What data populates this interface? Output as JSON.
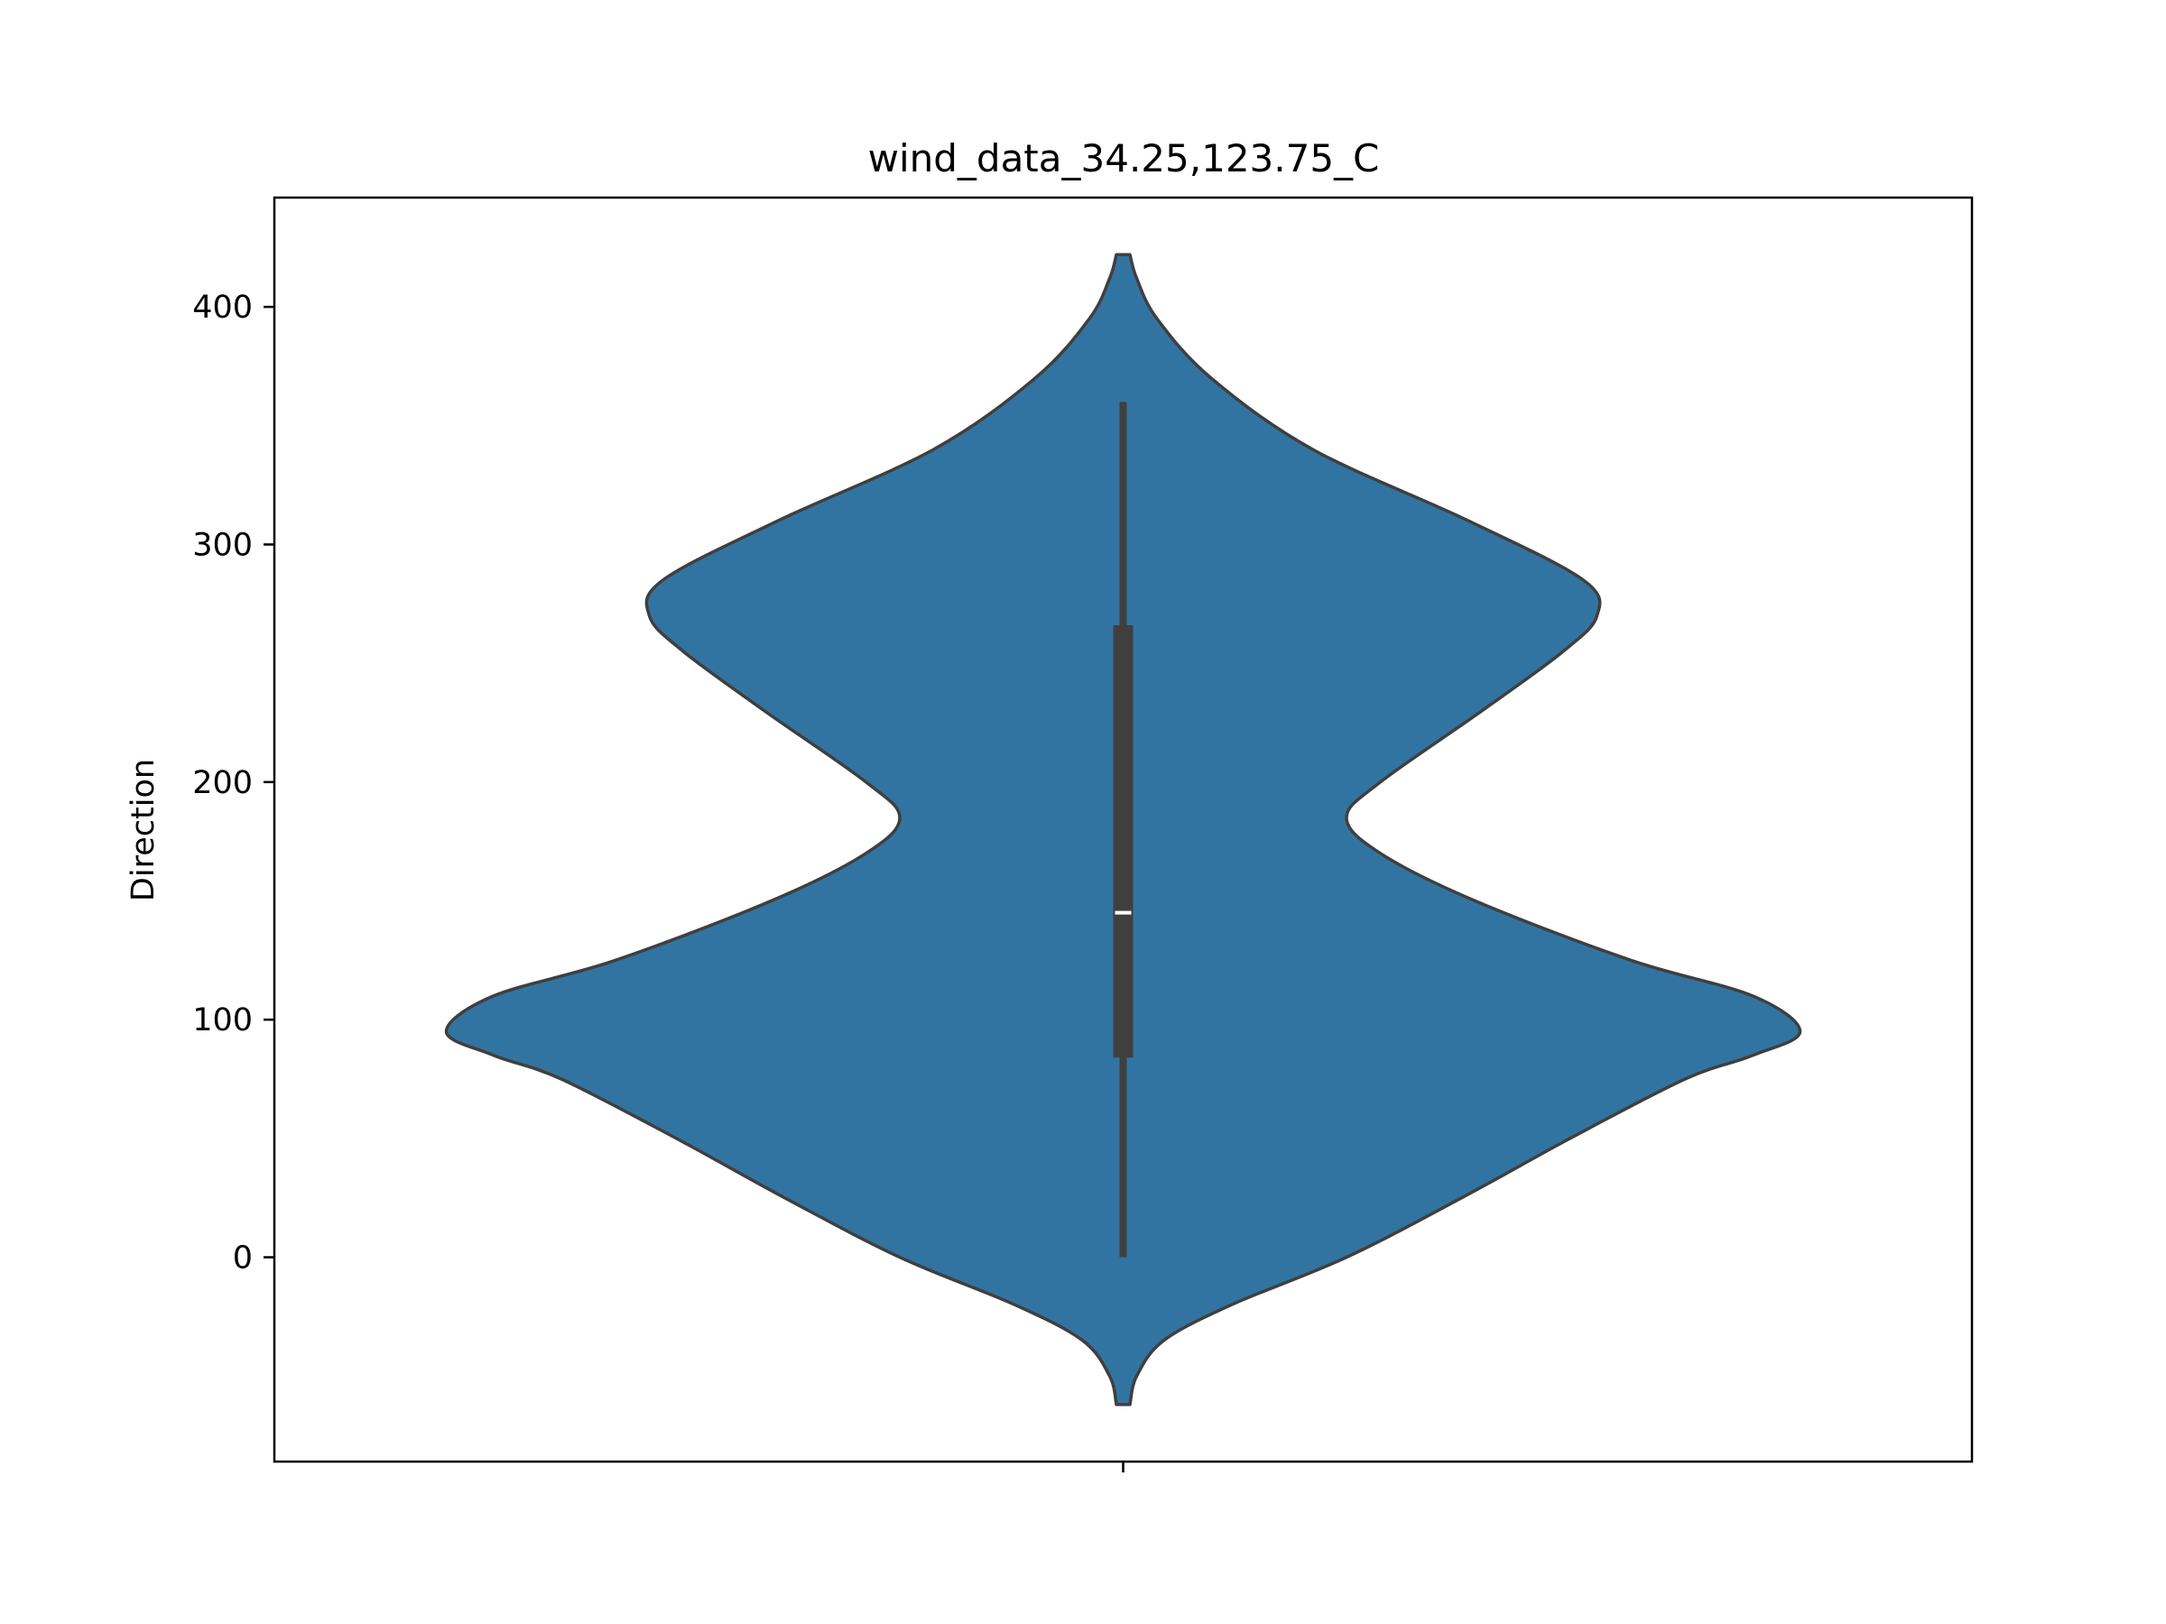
{
  "chart_data": {
    "type": "violin",
    "title": "wind_data_34.25,123.75_C",
    "xlabel": "",
    "ylabel": "Direction",
    "ylim": [
      -86,
      446
    ],
    "yticks": [
      0,
      100,
      200,
      300,
      400
    ],
    "xticks": [
      ""
    ],
    "grid": false,
    "colors": {
      "body": "#3274a1",
      "edge": "#3f3f3f",
      "box": "#3f3f3f",
      "median": "#ffffff"
    },
    "density": [
      [
        -62,
        0.01
      ],
      [
        -50,
        0.02
      ],
      [
        -35,
        0.06
      ],
      [
        -20,
        0.16
      ],
      [
        0,
        0.33
      ],
      [
        25,
        0.5
      ],
      [
        50,
        0.66
      ],
      [
        75,
        0.83
      ],
      [
        85,
        0.93
      ],
      [
        95,
        1.0
      ],
      [
        110,
        0.93
      ],
      [
        125,
        0.75
      ],
      [
        150,
        0.52
      ],
      [
        170,
        0.38
      ],
      [
        185,
        0.33
      ],
      [
        200,
        0.38
      ],
      [
        230,
        0.53
      ],
      [
        255,
        0.65
      ],
      [
        270,
        0.7
      ],
      [
        285,
        0.68
      ],
      [
        310,
        0.51
      ],
      [
        340,
        0.28
      ],
      [
        370,
        0.13
      ],
      [
        395,
        0.05
      ],
      [
        412,
        0.02
      ],
      [
        422,
        0.01
      ]
    ],
    "box": {
      "whisker_low": 0,
      "q1": 84,
      "median": 145,
      "q3": 266,
      "whisker_high": 360
    }
  }
}
